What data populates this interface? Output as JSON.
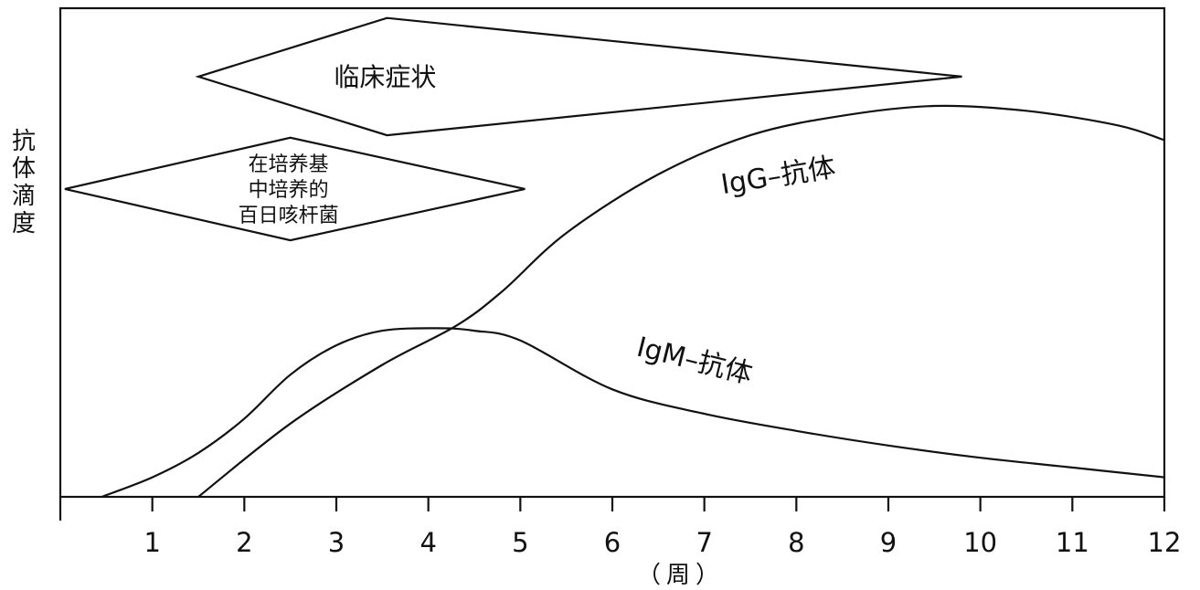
{
  "chart_data": {
    "type": "line",
    "ylabel_chars": [
      "抗",
      "体",
      "滴",
      "度"
    ],
    "xlabel": "（周）",
    "xlim": [
      0,
      12
    ],
    "ylim": [
      0,
      100
    ],
    "x_ticks": [
      1,
      2,
      3,
      4,
      5,
      6,
      7,
      8,
      9,
      10,
      11,
      12
    ],
    "series": [
      {
        "name": "IgG–抗体",
        "x": [
          1.5,
          2.5,
          3.5,
          4.3,
          4.8,
          5.5,
          6.5,
          7.5,
          8.5,
          9.5,
          10.5,
          11.5,
          12
        ],
        "y": [
          0,
          15,
          27,
          35,
          42,
          54,
          66,
          74,
          78,
          80,
          79,
          76,
          73
        ]
      },
      {
        "name": "IgM–抗体",
        "x": [
          0.45,
          1.0,
          1.5,
          2.0,
          2.5,
          3.0,
          3.5,
          4.1,
          4.5,
          5.0,
          6.0,
          7.0,
          8.0,
          9.0,
          10.0,
          11.0,
          12.0
        ],
        "y": [
          0,
          4,
          9,
          16,
          25,
          31,
          34,
          34.5,
          34,
          32,
          22,
          17,
          13.5,
          10.5,
          8,
          6,
          4
        ]
      }
    ],
    "annotations": [
      {
        "kind": "clinical",
        "lines": [
          "临床症状"
        ],
        "x_start": 1.5,
        "x_peak": 3.55,
        "x_end": 9.8,
        "y_mid": 86,
        "half_height_at_peak": 12
      },
      {
        "kind": "culture",
        "lines": [
          "在培养基",
          "中培养的",
          "百日咳杆菌"
        ],
        "x_start": 0.05,
        "x_peak": 2.5,
        "x_end": 5.05,
        "y_mid": 63,
        "half_height_at_peak": 10.5
      }
    ]
  }
}
